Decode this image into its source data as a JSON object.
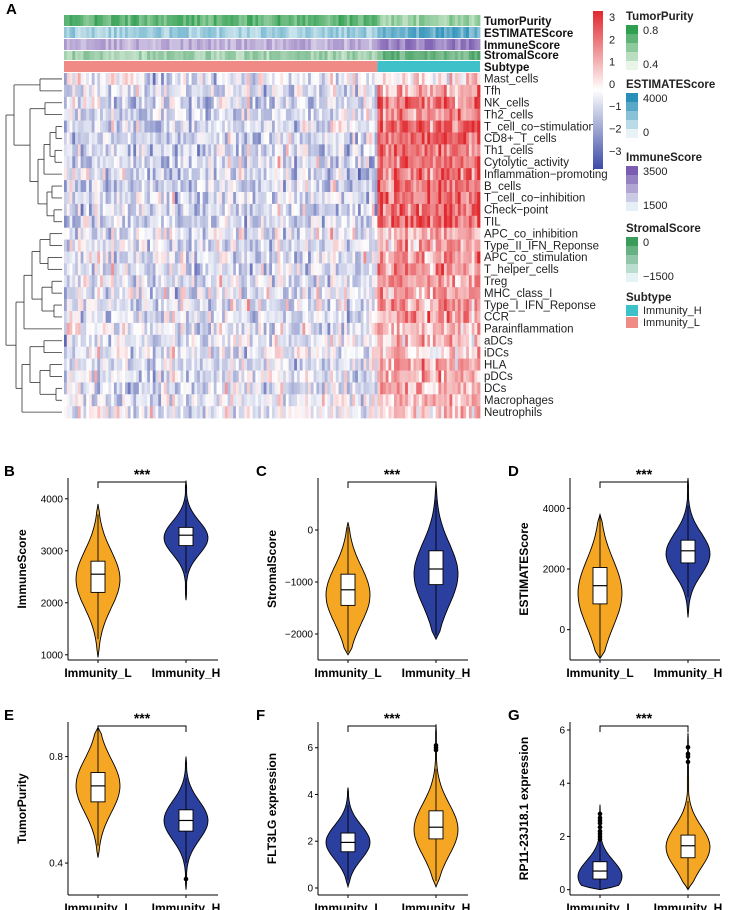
{
  "colors": {
    "orange": "#F5A623",
    "blue": "#2B3F9E",
    "immunity_h": "#3FC1C9",
    "immunity_l": "#F08A84",
    "heat_low": "#3B4BA6",
    "heat_mid": "#FFFFFF",
    "heat_high": "#E0282D"
  },
  "heatmap": {
    "panel_label": "A",
    "annotations": [
      "TumorPurity",
      "ESTIMATEScore",
      "ImmuneScore",
      "StromalScore",
      "Subtype"
    ],
    "rows": [
      "Mast_cells",
      "Tfh",
      "NK_cells",
      "Th2_cells",
      "T_cell_co−stimulation",
      "CD8+_T_cells",
      "Th1_cells",
      "Cytolytic_activity",
      "Inflammation−promoting",
      "B_cells",
      "T_cell_co−inhibition",
      "Check−point",
      "TIL",
      "APC_co_inhibition",
      "Type_II_IFN_Reponse",
      "APC_co_stimulation",
      "T_helper_cells",
      "Treg",
      "MHC_class_I",
      "Type_I_IFN_Reponse",
      "CCR",
      "Parainflammation",
      "aDCs",
      "iDCs",
      "HLA",
      "pDCs",
      "DCs",
      "Macrophages",
      "Neutrophils"
    ],
    "colorbar_ticks": [
      "3",
      "2",
      "1",
      "0",
      "−1",
      "−2",
      "−3"
    ],
    "legend": [
      {
        "title": "TumorPurity",
        "labels": [
          "0.8",
          "0.4"
        ]
      },
      {
        "title": "ESTIMATEScore",
        "labels": [
          "4000",
          "0"
        ]
      },
      {
        "title": "ImmuneScore",
        "labels": [
          "3500",
          "1500"
        ]
      },
      {
        "title": "StromalScore",
        "labels": [
          "0",
          "−1500"
        ]
      },
      {
        "title": "Subtype",
        "labels": [
          "Immunity_H",
          "Immunity_L"
        ]
      }
    ]
  },
  "chart_data": [
    {
      "type": "violin",
      "panel": "B",
      "ylabel": "ImmuneScore",
      "categories": [
        "Immunity_L",
        "Immunity_H"
      ],
      "ylim": [
        900,
        4400
      ],
      "yticks": [
        1000,
        2000,
        3000,
        4000
      ],
      "fills": [
        "orange",
        "blue"
      ],
      "significance": "***",
      "series": [
        {
          "name": "Immunity_L",
          "min": 950,
          "q1": 2200,
          "median": 2550,
          "q3": 2800,
          "max": 3900,
          "mode": 2450
        },
        {
          "name": "Immunity_H",
          "min": 2050,
          "q1": 3100,
          "median": 3300,
          "q3": 3450,
          "max": 4350,
          "mode": 3250
        }
      ]
    },
    {
      "type": "violin",
      "panel": "C",
      "ylabel": "StromalScore",
      "categories": [
        "Immunity_L",
        "Immunity_H"
      ],
      "ylim": [
        -2500,
        1000
      ],
      "yticks": [
        -2000,
        -1000,
        0
      ],
      "fills": [
        "orange",
        "blue"
      ],
      "significance": "***",
      "series": [
        {
          "name": "Immunity_L",
          "min": -2400,
          "q1": -1450,
          "median": -1150,
          "q3": -850,
          "max": 150,
          "mode": -1250
        },
        {
          "name": "Immunity_H",
          "min": -2100,
          "q1": -1050,
          "median": -750,
          "q3": -400,
          "max": 900,
          "mode": -850
        }
      ]
    },
    {
      "type": "violin",
      "panel": "D",
      "ylabel": "ESTIMATEScore",
      "categories": [
        "Immunity_L",
        "Immunity_H"
      ],
      "ylim": [
        -1000,
        5000
      ],
      "yticks": [
        0,
        2000,
        4000
      ],
      "fills": [
        "orange",
        "blue"
      ],
      "significance": "***",
      "series": [
        {
          "name": "Immunity_L",
          "min": -950,
          "q1": 850,
          "median": 1450,
          "q3": 2050,
          "max": 3800,
          "mode": 1200
        },
        {
          "name": "Immunity_H",
          "min": 400,
          "q1": 2200,
          "median": 2600,
          "q3": 2950,
          "max": 5000,
          "mode": 2500
        }
      ]
    },
    {
      "type": "violin",
      "panel": "E",
      "ylabel": "TumorPurity",
      "categories": [
        "Immunity_L",
        "Immunity_H"
      ],
      "ylim": [
        0.28,
        0.93
      ],
      "yticks": [
        0.4,
        0.8
      ],
      "fills": [
        "orange",
        "blue"
      ],
      "significance": "***",
      "series": [
        {
          "name": "Immunity_L",
          "min": 0.42,
          "q1": 0.63,
          "median": 0.69,
          "q3": 0.74,
          "max": 0.91,
          "mode": 0.69
        },
        {
          "name": "Immunity_H",
          "min": 0.3,
          "q1": 0.52,
          "median": 0.56,
          "q3": 0.6,
          "max": 0.8,
          "mode": 0.56,
          "outliers": [
            0.34
          ]
        }
      ]
    },
    {
      "type": "violin",
      "panel": "F",
      "ylabel": "FLT3LG expression",
      "categories": [
        "Immunity_L",
        "Immunity_H"
      ],
      "ylim": [
        -0.3,
        7.1
      ],
      "yticks": [
        0,
        2,
        4,
        6
      ],
      "fills": [
        "blue",
        "orange"
      ],
      "significance": "***",
      "series": [
        {
          "name": "Immunity_L",
          "min": 0.05,
          "q1": 1.55,
          "median": 1.95,
          "q3": 2.35,
          "max": 4.3,
          "mode": 1.95
        },
        {
          "name": "Immunity_H",
          "min": 0.05,
          "q1": 2.1,
          "median": 2.6,
          "q3": 3.3,
          "max": 7.0,
          "mode": 2.5,
          "outliers": [
            5.9,
            6.0,
            6.1
          ]
        }
      ]
    },
    {
      "type": "violin",
      "panel": "G",
      "ylabel": "RP11-23J18.1 expression",
      "categories": [
        "Immunity_L",
        "Immunity_H"
      ],
      "ylim": [
        -0.2,
        6.3
      ],
      "yticks": [
        0,
        2,
        4,
        6
      ],
      "fills": [
        "blue",
        "orange"
      ],
      "significance": "***",
      "series": [
        {
          "name": "Immunity_L",
          "min": 0.0,
          "q1": 0.4,
          "median": 0.7,
          "q3": 1.05,
          "max": 3.2,
          "mode": 0.5,
          "outliers": [
            1.9,
            2.0,
            2.1,
            2.2,
            2.35,
            2.5,
            2.6,
            2.7,
            2.85
          ]
        },
        {
          "name": "Immunity_H",
          "min": 0.0,
          "q1": 1.2,
          "median": 1.65,
          "q3": 2.05,
          "max": 5.9,
          "mode": 1.6,
          "outliers": [
            4.8,
            5.0,
            5.1,
            5.35
          ]
        }
      ]
    }
  ]
}
